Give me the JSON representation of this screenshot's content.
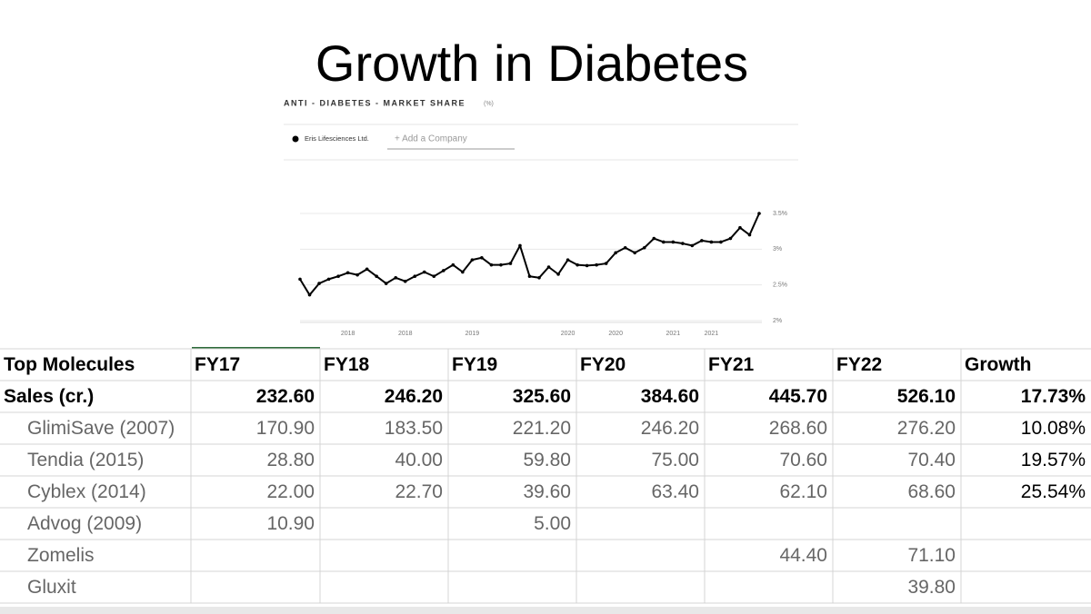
{
  "title": "Growth in Diabetes",
  "chart_data": {
    "type": "line",
    "title": "ANTI - DIABETES - MARKET SHARE",
    "unit_note": "(%)",
    "legend": [
      "Eris Lifesciences Ltd."
    ],
    "add_company": "+ Add a Company",
    "categories": [
      null,
      null,
      null,
      null,
      null,
      "2018",
      null,
      null,
      null,
      null,
      null,
      "2018",
      null,
      null,
      null,
      null,
      null,
      null,
      "2019",
      null,
      null,
      null,
      null,
      null,
      null,
      null,
      null,
      null,
      "2020",
      null,
      null,
      null,
      null,
      "2020",
      null,
      null,
      null,
      null,
      null,
      "2021",
      null,
      null,
      null,
      "2021",
      null,
      null,
      null,
      null,
      null
    ],
    "series": [
      {
        "name": "Eris Lifesciences Ltd.",
        "color": "#000000",
        "values": [
          2.58,
          2.36,
          2.52,
          2.58,
          2.62,
          2.67,
          2.64,
          2.72,
          2.62,
          2.52,
          2.6,
          2.55,
          2.62,
          2.68,
          2.62,
          2.7,
          2.78,
          2.68,
          2.85,
          2.88,
          2.78,
          2.78,
          2.8,
          3.05,
          2.62,
          2.6,
          2.75,
          2.65,
          2.85,
          2.78,
          2.77,
          2.78,
          2.8,
          2.95,
          3.02,
          2.95,
          3.02,
          3.15,
          3.1,
          3.1,
          3.08,
          3.05,
          3.12,
          3.1,
          3.1,
          3.15,
          3.3,
          3.2,
          3.5
        ]
      }
    ],
    "ylim": [
      2,
      3.5
    ],
    "yticks": [
      {
        "value": 2,
        "label": "2%"
      },
      {
        "value": 2.5,
        "label": "2.5%"
      },
      {
        "value": 3,
        "label": "3%"
      },
      {
        "value": 3.5,
        "label": "3.5%"
      }
    ],
    "grid": true
  },
  "table": {
    "header": [
      "Top Molecules",
      "FY17",
      "FY18",
      "FY19",
      "FY20",
      "FY21",
      "FY22",
      "Growth"
    ],
    "rows": [
      [
        "Sales (cr.)",
        "232.60",
        "246.20",
        "325.60",
        "384.60",
        "445.70",
        "526.10",
        "17.73%"
      ],
      [
        "GlimiSave (2007)",
        "170.90",
        "183.50",
        "221.20",
        "246.20",
        "268.60",
        "276.20",
        "10.08%"
      ],
      [
        "Tendia (2015)",
        "28.80",
        "40.00",
        "59.80",
        "75.00",
        "70.60",
        "70.40",
        "19.57%"
      ],
      [
        "Cyblex (2014)",
        "22.00",
        "22.70",
        "39.60",
        "63.40",
        "62.10",
        "68.60",
        "25.54%"
      ],
      [
        "Advog (2009)",
        "10.90",
        null,
        "5.00",
        null,
        null,
        null,
        null
      ],
      [
        "Zomelis",
        null,
        null,
        null,
        null,
        "44.40",
        "71.10",
        null
      ],
      [
        "Gluxit",
        null,
        null,
        null,
        null,
        null,
        "39.80",
        null
      ]
    ]
  }
}
